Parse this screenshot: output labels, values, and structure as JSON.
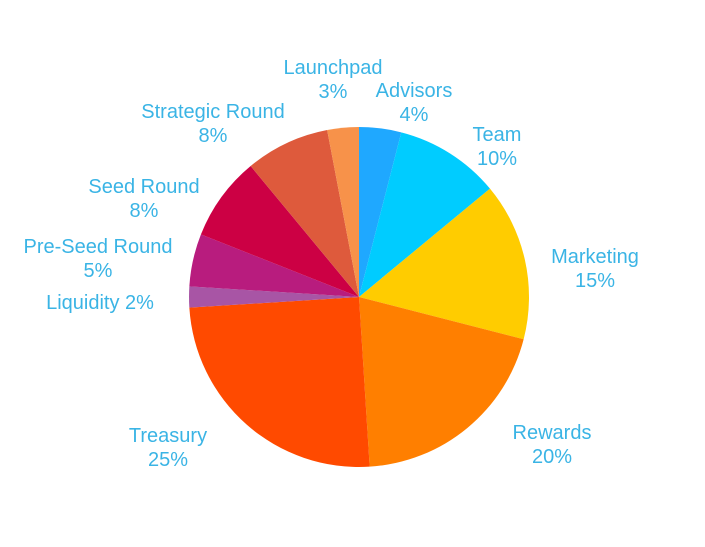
{
  "chart_data": {
    "type": "pie",
    "title": "",
    "start": "top",
    "direction": "clockwise",
    "label_color": "#3AB4E5",
    "slices": [
      {
        "label": "Advisors",
        "value_text": "4%",
        "value": 4,
        "color": "#1FA8FF",
        "label_lines": [
          "Advisors",
          "4%"
        ]
      },
      {
        "label": "Team",
        "value_text": "10%",
        "value": 10,
        "color": "#00CCFF",
        "label_lines": [
          "Team",
          "10%"
        ]
      },
      {
        "label": "Marketing",
        "value_text": "15%",
        "value": 15,
        "color": "#FFCC00",
        "label_lines": [
          "Marketing",
          "15%"
        ]
      },
      {
        "label": "Rewards",
        "value_text": "20%",
        "value": 20,
        "color": "#FF7F00",
        "label_lines": [
          "Rewards",
          "20%"
        ]
      },
      {
        "label": "Treasury",
        "value_text": "25%",
        "value": 25,
        "color": "#FF4A00",
        "label_lines": [
          "Treasury",
          "25%"
        ]
      },
      {
        "label": "Liquidity",
        "value_text": "2%",
        "value": 2,
        "color": "#A855A5",
        "label_lines": [
          "Liquidity 2%"
        ]
      },
      {
        "label": "Pre-Seed Round",
        "value_text": "5%",
        "value": 5,
        "color": "#B81C7E",
        "label_lines": [
          "Pre-Seed Round",
          "5%"
        ]
      },
      {
        "label": "Seed Round",
        "value_text": "8%",
        "value": 8,
        "color": "#CC0044",
        "label_lines": [
          "Seed Round",
          "8%"
        ]
      },
      {
        "label": "Strategic Round",
        "value_text": "8%",
        "value": 8,
        "color": "#DE5A3C",
        "label_lines": [
          "Strategic Round",
          "8%"
        ]
      },
      {
        "label": "Launchpad",
        "value_text": "3%",
        "value": 3,
        "color": "#F7924A",
        "label_lines": [
          "Launchpad",
          "3%"
        ]
      }
    ]
  }
}
